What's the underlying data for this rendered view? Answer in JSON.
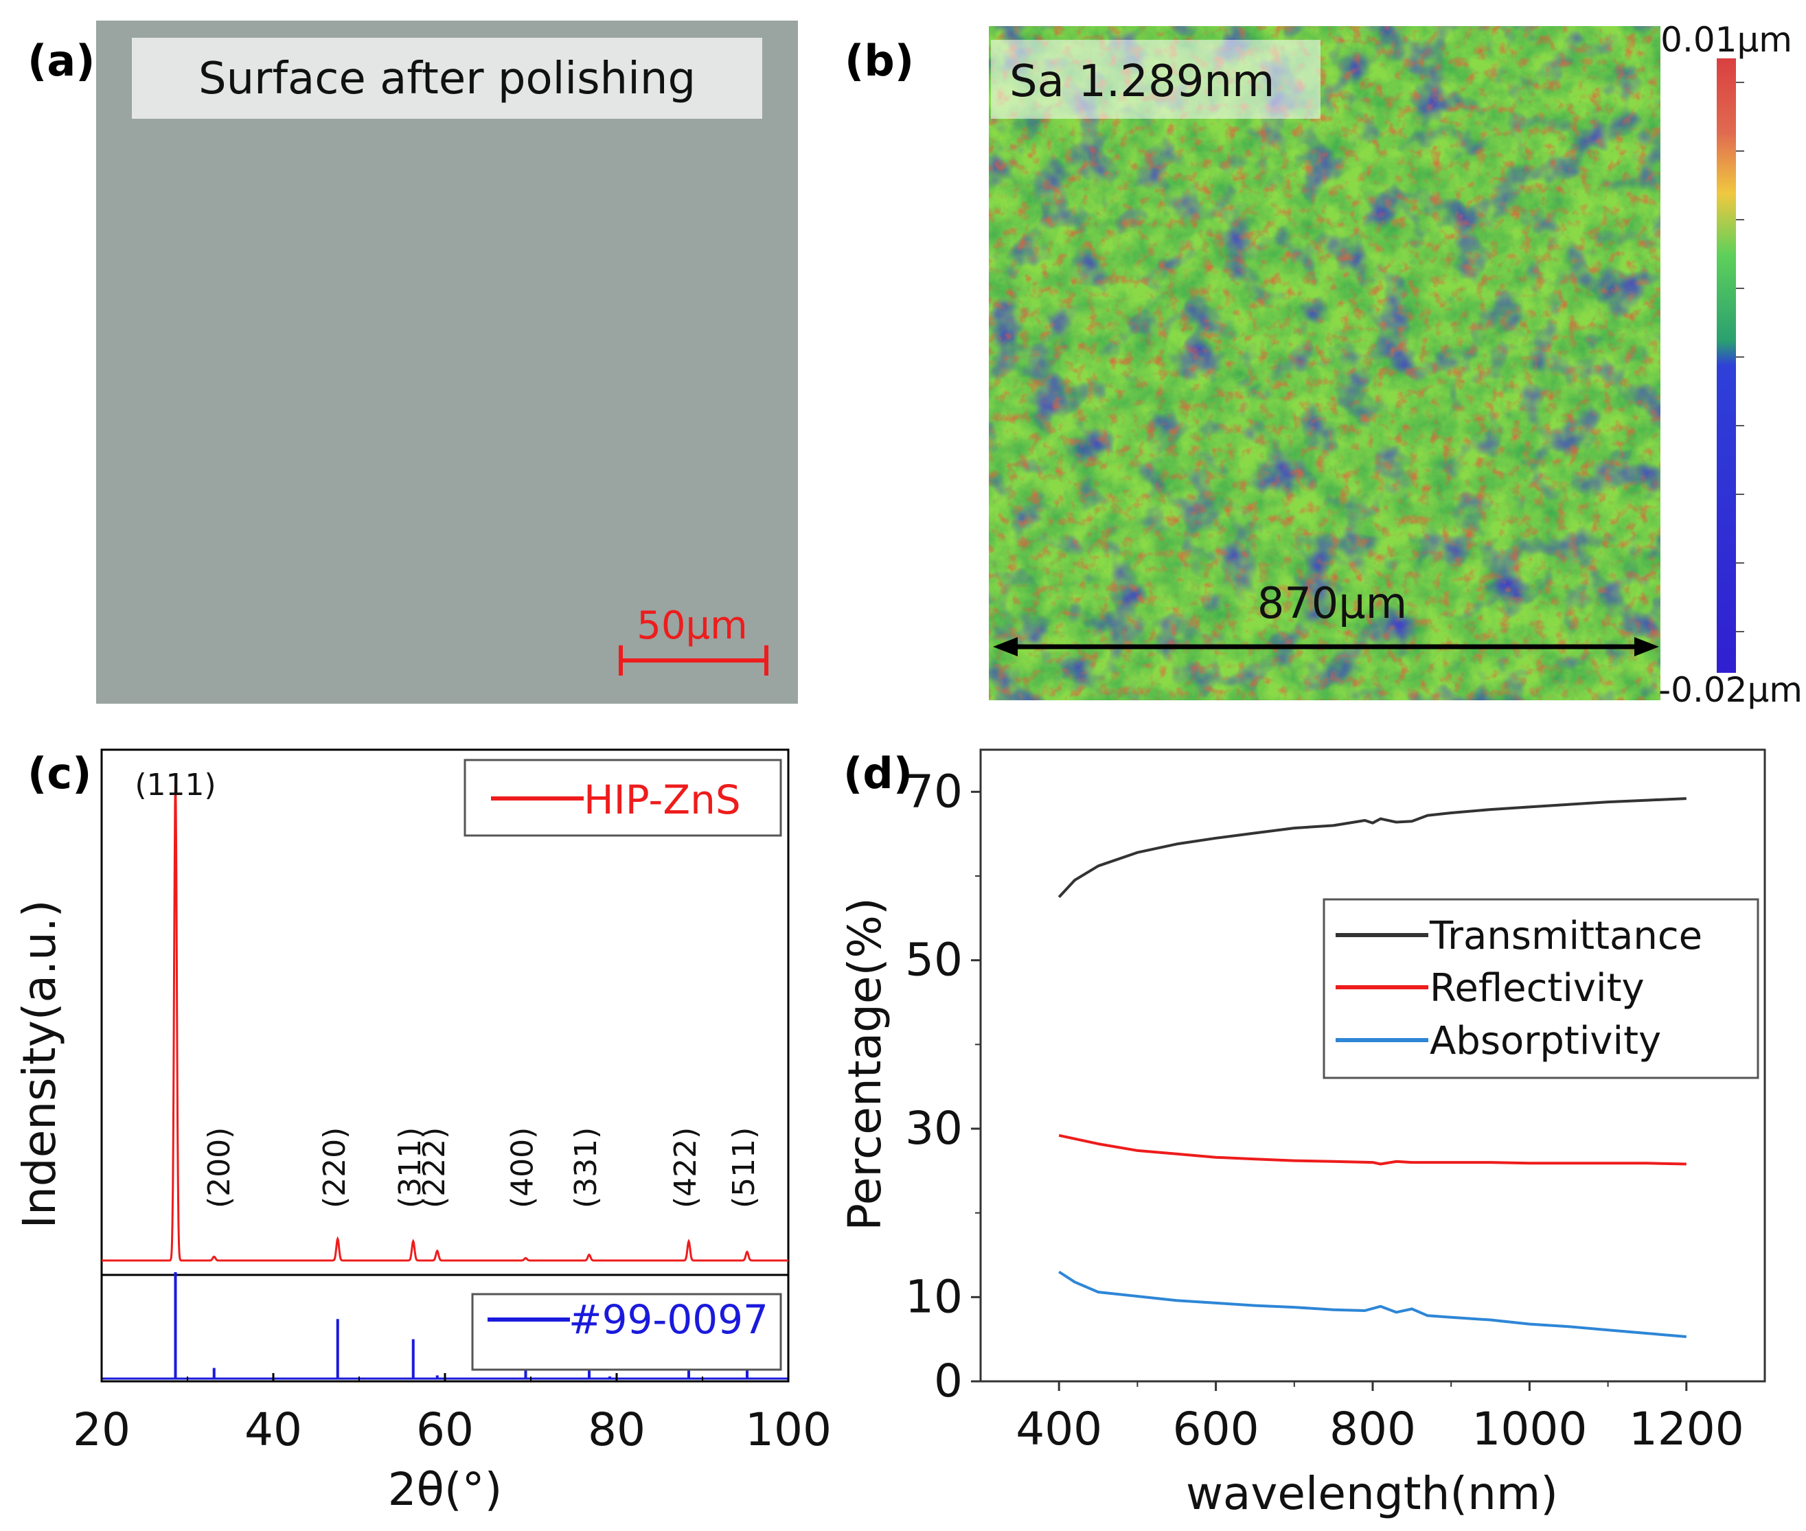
{
  "colors": {
    "red": "#ee1c1c",
    "blue": "#1a1adc",
    "black": "#000000",
    "dark_line": "#333333",
    "light_blue": "#2e86d6",
    "micro_bg": "#9aa4a1"
  },
  "panel_a": {
    "label": "(a)",
    "title": "Surface after polishing",
    "scale_bar": "50μm"
  },
  "panel_b": {
    "label": "(b)",
    "roughness": "Sa 1.289nm",
    "width_label": "870μm",
    "colorbar_max": "0.01μm",
    "colorbar_min": "-0.02μm",
    "colorbar_colors": [
      "#d94040",
      "#e06a50",
      "#f0c840",
      "#5ed05a",
      "#2aa070",
      "#2f40d8",
      "#3020d0"
    ]
  },
  "chart_data": [
    {
      "panel": "(c)",
      "type": "line",
      "xlabel": "2θ(°)",
      "ylabel": "Indensity(a.u.)",
      "xlim": [
        20,
        100
      ],
      "x_ticks": [
        "20",
        "40",
        "60",
        "80",
        "100"
      ],
      "series": [
        {
          "name": "HIP-ZnS",
          "color": "#ee1c1c",
          "baseline": 0.02,
          "peaks": [
            {
              "x": 28.6,
              "height": 1.0
            },
            {
              "x": 33.1,
              "height": 0.008
            },
            {
              "x": 47.5,
              "height": 0.045
            },
            {
              "x": 56.3,
              "height": 0.04
            },
            {
              "x": 59.1,
              "height": 0.02
            },
            {
              "x": 69.4,
              "height": 0.005
            },
            {
              "x": 76.8,
              "height": 0.012
            },
            {
              "x": 88.4,
              "height": 0.04
            },
            {
              "x": 95.2,
              "height": 0.018
            }
          ]
        },
        {
          "name": "#99-0097",
          "color": "#1a1adc",
          "type": "stick",
          "sticks": [
            {
              "x": 28.6,
              "height": 1.0
            },
            {
              "x": 33.1,
              "height": 0.1
            },
            {
              "x": 47.5,
              "height": 0.56
            },
            {
              "x": 56.3,
              "height": 0.37
            },
            {
              "x": 59.1,
              "height": 0.03
            },
            {
              "x": 69.4,
              "height": 0.08
            },
            {
              "x": 76.8,
              "height": 0.12
            },
            {
              "x": 79.2,
              "height": 0.02
            },
            {
              "x": 88.4,
              "height": 0.15
            },
            {
              "x": 95.2,
              "height": 0.09
            }
          ]
        }
      ],
      "peak_labels": [
        {
          "label": "(111)",
          "x": 28.6
        },
        {
          "label": "(200)",
          "x": 33.1
        },
        {
          "label": "(220)",
          "x": 47.5
        },
        {
          "label": "(311)",
          "x": 56.3
        },
        {
          "label": "(222)",
          "x": 59.1
        },
        {
          "label": "(400)",
          "x": 69.4
        },
        {
          "label": "(331)",
          "x": 76.8
        },
        {
          "label": "(422)",
          "x": 88.4
        },
        {
          "label": "(511)",
          "x": 95.2
        }
      ]
    },
    {
      "panel": "(d)",
      "type": "line",
      "xlabel": "wavelength(nm)",
      "ylabel": "Percentage(%)",
      "xlim": [
        300,
        1300
      ],
      "ylim": [
        0,
        75
      ],
      "x_ticks": [
        400,
        600,
        800,
        1000,
        1200
      ],
      "y_ticks": [
        0,
        10,
        30,
        50,
        70
      ],
      "legend": "center-right",
      "series": [
        {
          "name": "Transmittance",
          "color": "#333333",
          "points": [
            [
              400,
              57.5
            ],
            [
              420,
              59.5
            ],
            [
              450,
              61.2
            ],
            [
              500,
              62.8
            ],
            [
              550,
              63.8
            ],
            [
              600,
              64.5
            ],
            [
              650,
              65.1
            ],
            [
              700,
              65.7
            ],
            [
              750,
              66.0
            ],
            [
              790,
              66.6
            ],
            [
              800,
              66.3
            ],
            [
              810,
              66.8
            ],
            [
              830,
              66.4
            ],
            [
              850,
              66.5
            ],
            [
              870,
              67.2
            ],
            [
              900,
              67.5
            ],
            [
              950,
              67.9
            ],
            [
              1000,
              68.2
            ],
            [
              1050,
              68.5
            ],
            [
              1100,
              68.8
            ],
            [
              1150,
              69.0
            ],
            [
              1200,
              69.2
            ]
          ]
        },
        {
          "name": "Reflectivity",
          "color": "#ee1c1c",
          "points": [
            [
              400,
              29.2
            ],
            [
              420,
              28.8
            ],
            [
              450,
              28.2
            ],
            [
              500,
              27.4
            ],
            [
              550,
              27.0
            ],
            [
              600,
              26.6
            ],
            [
              650,
              26.4
            ],
            [
              700,
              26.2
            ],
            [
              750,
              26.1
            ],
            [
              800,
              26.0
            ],
            [
              810,
              25.8
            ],
            [
              830,
              26.1
            ],
            [
              850,
              26.0
            ],
            [
              900,
              26.0
            ],
            [
              950,
              26.0
            ],
            [
              1000,
              25.9
            ],
            [
              1050,
              25.9
            ],
            [
              1100,
              25.9
            ],
            [
              1150,
              25.9
            ],
            [
              1200,
              25.8
            ]
          ]
        },
        {
          "name": "Absorptivity",
          "color": "#2e86d6",
          "points": [
            [
              400,
              13.0
            ],
            [
              420,
              11.8
            ],
            [
              450,
              10.6
            ],
            [
              500,
              10.1
            ],
            [
              550,
              9.6
            ],
            [
              600,
              9.3
            ],
            [
              650,
              9.0
            ],
            [
              700,
              8.8
            ],
            [
              750,
              8.5
            ],
            [
              790,
              8.4
            ],
            [
              810,
              8.9
            ],
            [
              830,
              8.2
            ],
            [
              850,
              8.6
            ],
            [
              870,
              7.8
            ],
            [
              900,
              7.6
            ],
            [
              950,
              7.3
            ],
            [
              1000,
              6.8
            ],
            [
              1050,
              6.5
            ],
            [
              1100,
              6.1
            ],
            [
              1150,
              5.7
            ],
            [
              1200,
              5.3
            ]
          ]
        }
      ]
    }
  ]
}
